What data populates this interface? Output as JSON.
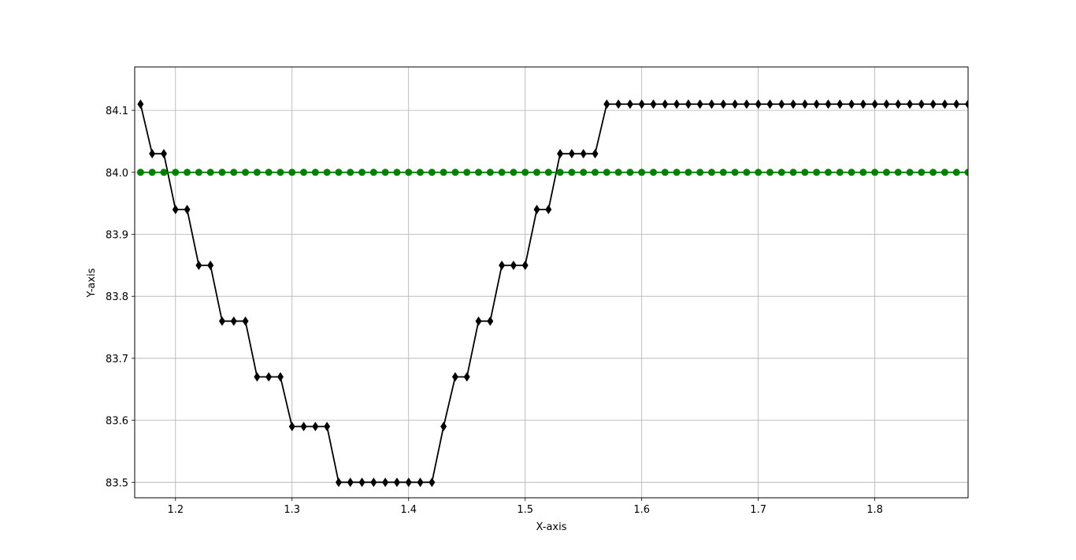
{
  "chart_data": {
    "type": "line",
    "title": "",
    "xlabel": "X-axis",
    "ylabel": "Y-axis",
    "xlim": [
      1.165,
      1.88
    ],
    "ylim": [
      83.475,
      84.17
    ],
    "xticks": [
      1.2,
      1.3,
      1.4,
      1.5,
      1.6,
      1.7,
      1.8
    ],
    "xtick_labels": [
      "1.2",
      "1.3",
      "1.4",
      "1.5",
      "1.6",
      "1.7",
      "1.8"
    ],
    "yticks": [
      83.5,
      83.6,
      83.7,
      83.8,
      83.9,
      84.0,
      84.1
    ],
    "ytick_labels": [
      "83.5",
      "83.6",
      "83.7",
      "83.8",
      "83.9",
      "84.0",
      "84.1"
    ],
    "grid": true,
    "x": [
      1.17,
      1.18,
      1.19,
      1.2,
      1.21,
      1.22,
      1.23,
      1.24,
      1.25,
      1.26,
      1.27,
      1.28,
      1.29,
      1.3,
      1.31,
      1.32,
      1.33,
      1.34,
      1.35,
      1.36,
      1.37,
      1.38,
      1.39,
      1.4,
      1.41,
      1.42,
      1.43,
      1.44,
      1.45,
      1.46,
      1.47,
      1.48,
      1.49,
      1.5,
      1.51,
      1.52,
      1.53,
      1.54,
      1.55,
      1.56,
      1.57,
      1.58,
      1.59,
      1.6,
      1.61,
      1.62,
      1.63,
      1.64,
      1.65,
      1.66,
      1.67,
      1.68,
      1.69,
      1.7,
      1.71,
      1.72,
      1.73,
      1.74,
      1.75,
      1.76,
      1.77,
      1.78,
      1.79,
      1.8,
      1.81,
      1.82,
      1.83,
      1.84,
      1.85,
      1.86,
      1.87,
      1.88
    ],
    "series": [
      {
        "color": "#000000",
        "marker": "diamond",
        "values": [
          84.11,
          84.03,
          84.03,
          83.94,
          83.94,
          83.85,
          83.85,
          83.76,
          83.76,
          83.76,
          83.67,
          83.67,
          83.67,
          83.59,
          83.59,
          83.59,
          83.59,
          83.5,
          83.5,
          83.5,
          83.5,
          83.5,
          83.5,
          83.5,
          83.5,
          83.5,
          83.59,
          83.67,
          83.67,
          83.76,
          83.76,
          83.85,
          83.85,
          83.85,
          83.94,
          83.94,
          84.03,
          84.03,
          84.03,
          84.03,
          84.11,
          84.11,
          84.11,
          84.11,
          84.11,
          84.11,
          84.11,
          84.11,
          84.11,
          84.11,
          84.11,
          84.11,
          84.11,
          84.11,
          84.11,
          84.11,
          84.11,
          84.11,
          84.11,
          84.11,
          84.11,
          84.11,
          84.11,
          84.11,
          84.11,
          84.11,
          84.11,
          84.11,
          84.11,
          84.11,
          84.11,
          84.11
        ]
      },
      {
        "color": "#008000",
        "marker": "circle",
        "values": [
          84.0,
          84.0,
          84.0,
          84.0,
          84.0,
          84.0,
          84.0,
          84.0,
          84.0,
          84.0,
          84.0,
          84.0,
          84.0,
          84.0,
          84.0,
          84.0,
          84.0,
          84.0,
          84.0,
          84.0,
          84.0,
          84.0,
          84.0,
          84.0,
          84.0,
          84.0,
          84.0,
          84.0,
          84.0,
          84.0,
          84.0,
          84.0,
          84.0,
          84.0,
          84.0,
          84.0,
          84.0,
          84.0,
          84.0,
          84.0,
          84.0,
          84.0,
          84.0,
          84.0,
          84.0,
          84.0,
          84.0,
          84.0,
          84.0,
          84.0,
          84.0,
          84.0,
          84.0,
          84.0,
          84.0,
          84.0,
          84.0,
          84.0,
          84.0,
          84.0,
          84.0,
          84.0,
          84.0,
          84.0,
          84.0,
          84.0,
          84.0,
          84.0,
          84.0,
          84.0,
          84.0,
          84.0
        ]
      }
    ]
  }
}
